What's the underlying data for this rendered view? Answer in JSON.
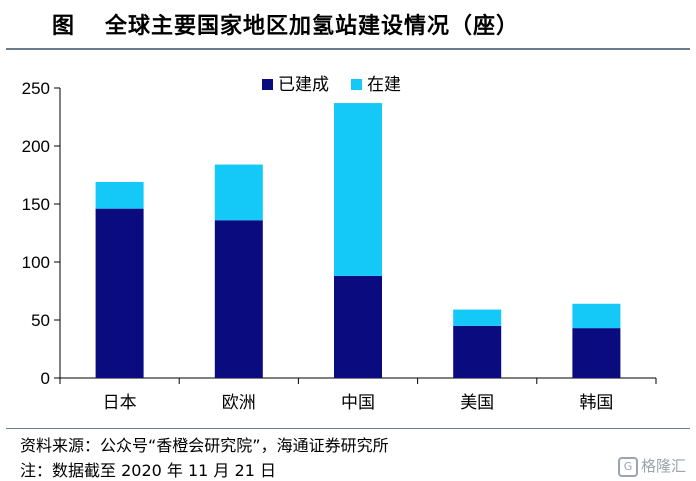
{
  "header": {
    "fig_label": "图",
    "title_text": "全球主要国家地区加氢站建设情况（座）"
  },
  "chart_data": {
    "type": "bar",
    "stacked": true,
    "categories": [
      "日本",
      "欧洲",
      "中国",
      "美国",
      "韩国"
    ],
    "series": [
      {
        "name": "已建成",
        "values": [
          146,
          136,
          88,
          45,
          43
        ],
        "color": "#0b0b80"
      },
      {
        "name": "在建",
        "values": [
          23,
          48,
          149,
          14,
          21
        ],
        "color": "#14c8f8"
      }
    ],
    "ylim": [
      0,
      250
    ],
    "yticks": [
      0,
      50,
      100,
      150,
      200,
      250
    ],
    "legend_position": "top-center",
    "grid": false
  },
  "footer": {
    "source": "资料来源：公众号“香橙会研究院”，海通证券研究所",
    "note": "注：数据截至 2020 年 11 月 21 日"
  },
  "watermark": {
    "icon_glyph": "G",
    "text": "格隆汇"
  }
}
